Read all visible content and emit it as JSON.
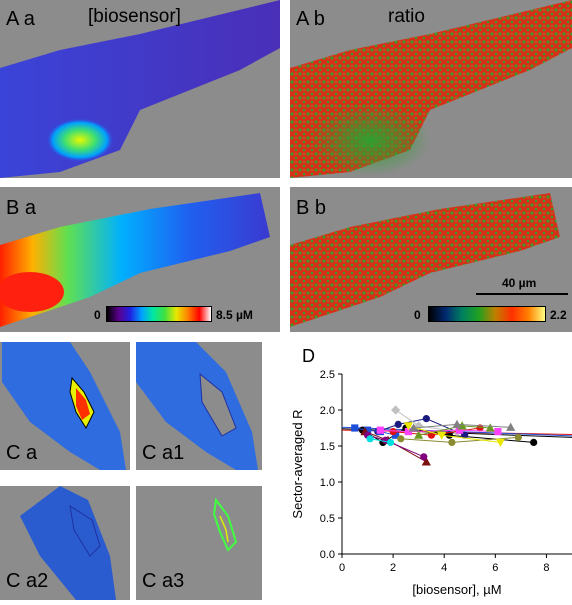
{
  "panels": {
    "Aa": {
      "label": "A a",
      "header": "[biosensor]"
    },
    "Ab": {
      "label": "A b",
      "header": "ratio"
    },
    "Ba": {
      "label": "B a"
    },
    "Bb": {
      "label": "B b"
    },
    "Ca": {
      "label": "C a"
    },
    "Ca1": {
      "label": "C a1"
    },
    "Ca2": {
      "label": "C a2"
    },
    "Ca3": {
      "label": "C a3"
    }
  },
  "colorbar_conc": {
    "min": "0",
    "max": "8.5 µM",
    "colors": [
      "#000000",
      "#5a008a",
      "#2020e0",
      "#00a0ff",
      "#00e8a0",
      "#40e040",
      "#e8e800",
      "#ff8000",
      "#ff0000",
      "#ffffff"
    ]
  },
  "colorbar_ratio": {
    "min": "0",
    "max": "2.2",
    "colors": [
      "#000000",
      "#002870",
      "#008060",
      "#20a020",
      "#c08000",
      "#ff3000",
      "#ff8000",
      "#ffff80"
    ]
  },
  "scalebar": {
    "label": "40 µm"
  },
  "figure_colors": {
    "background": "#8c8c8c",
    "cell_blue": "#4a3ad8",
    "ratio_red": "#d83018",
    "ratio_green": "#3a9a2a"
  },
  "chart_data": {
    "panel_label": "D",
    "type": "scatter",
    "xlabel": "[biosensor], µM",
    "ylabel": "Sector-averaged R",
    "xlim": [
      0,
      9
    ],
    "ylim": [
      0,
      2.5
    ],
    "xticks": [
      "0",
      "2",
      "4",
      "6",
      "8"
    ],
    "yticks": [
      "0.0",
      "0.5",
      "1.0",
      "1.5",
      "2.0",
      "2.5"
    ],
    "series": [
      {
        "color": "#000000",
        "marker": "circle",
        "x": [
          0.8,
          1.6,
          2.5,
          4.2,
          7.5
        ],
        "y": [
          1.72,
          1.55,
          1.75,
          1.65,
          1.55
        ]
      },
      {
        "color": "#1a1a80",
        "marker": "circle",
        "x": [
          1.4,
          2.2,
          3.3,
          4.8
        ],
        "y": [
          1.7,
          1.8,
          1.88,
          1.65
        ]
      },
      {
        "color": "#1f4fd8",
        "marker": "square",
        "x": [
          0.5,
          1.0,
          1.5,
          2.1
        ],
        "y": [
          1.75,
          1.72,
          1.7,
          1.65
        ]
      },
      {
        "color": "#7a1010",
        "marker": "triangle",
        "x": [
          0.9,
          1.8,
          3.3
        ],
        "y": [
          1.7,
          1.58,
          1.28
        ]
      },
      {
        "color": "#800080",
        "marker": "circle",
        "x": [
          1.0,
          1.7,
          3.2
        ],
        "y": [
          1.65,
          1.58,
          1.35
        ]
      },
      {
        "color": "#c0c0c0",
        "marker": "diamond",
        "x": [
          2.1,
          3.0,
          4.5
        ],
        "y": [
          2.0,
          1.78,
          1.7
        ]
      },
      {
        "color": "#e01010",
        "marker": "circle",
        "x": [
          2.0,
          3.5,
          5.4
        ],
        "y": [
          1.7,
          1.65,
          1.75
        ]
      },
      {
        "color": "#ff40ff",
        "marker": "square",
        "x": [
          1.5,
          2.6,
          4.6,
          6.1
        ],
        "y": [
          1.72,
          1.7,
          1.72,
          1.7
        ]
      },
      {
        "color": "#00e0e0",
        "marker": "circle",
        "x": [
          1.1,
          1.9
        ],
        "y": [
          1.6,
          1.55
        ]
      },
      {
        "color": "#6a9a20",
        "marker": "triangle",
        "x": [
          3.0,
          4.7,
          5.8
        ],
        "y": [
          1.65,
          1.78,
          1.75
        ]
      },
      {
        "color": "#8a8a30",
        "marker": "circle",
        "x": [
          2.3,
          4.3,
          6.9
        ],
        "y": [
          1.6,
          1.55,
          1.62
        ]
      },
      {
        "color": "#e8e800",
        "marker": "triangle-down",
        "x": [
          2.6,
          3.9,
          6.2
        ],
        "y": [
          1.78,
          1.65,
          1.55
        ]
      },
      {
        "color": "#808080",
        "marker": "triangle",
        "x": [
          2.8,
          4.5,
          6.6
        ],
        "y": [
          1.75,
          1.8,
          1.76
        ]
      }
    ],
    "fit_lines": [
      {
        "color": "#000000",
        "x": [
          0,
          9
        ],
        "y": [
          1.74,
          1.62
        ]
      },
      {
        "color": "#e01010",
        "x": [
          0,
          9
        ],
        "y": [
          1.72,
          1.66
        ]
      },
      {
        "color": "#1f4fd8",
        "x": [
          0,
          9
        ],
        "y": [
          1.76,
          1.64
        ]
      }
    ],
    "grid": false
  }
}
